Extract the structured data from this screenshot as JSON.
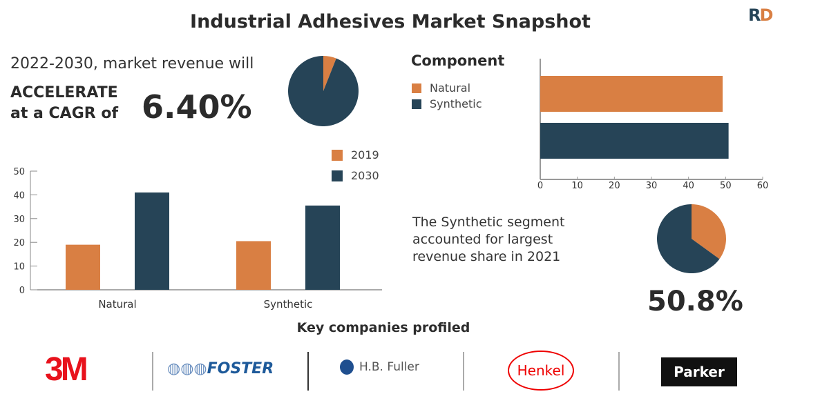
{
  "title": "Industrial Adhesives Market Snapshot",
  "brand_logo": "RD",
  "intro": "2022-2030, market revenue will",
  "accelerate": "ACCELERATE",
  "cagr_prefix": "at a CAGR of",
  "cagr_value": "6.40%",
  "segment_text": [
    "The Synthetic segment",
    "accounted for largest",
    "revenue share in 2021"
  ],
  "segment_share": "50.8%",
  "key_companies_label": "Key companies profiled",
  "companies": [
    "3M",
    "FOSTER",
    "H.B. Fuller",
    "Henkel",
    "Parker"
  ],
  "colors": {
    "orange": "#d97f43",
    "navy": "#264457"
  },
  "chart_data": [
    {
      "type": "pie",
      "values": [
        6,
        94
      ],
      "colors": [
        "#d97f43",
        "#264457"
      ]
    },
    {
      "type": "bar",
      "orientation": "horizontal",
      "title": "Component",
      "categories": [
        "Natural",
        "Synthetic"
      ],
      "values": [
        49.2,
        50.8
      ],
      "legend": [
        "Natural",
        "Synthetic"
      ],
      "legend_position": "top-left",
      "xlim": [
        0,
        60
      ],
      "xticks": [
        "0",
        "10",
        "20",
        "30",
        "40",
        "50",
        "60"
      ]
    },
    {
      "type": "bar",
      "categories": [
        "Natural",
        "Synthetic"
      ],
      "series": [
        {
          "name": "2019",
          "values": [
            19,
            20.5
          ]
        },
        {
          "name": "2030",
          "values": [
            41,
            35.5
          ]
        }
      ],
      "ylim": [
        0,
        50
      ],
      "yticks": [
        "0",
        "10",
        "20",
        "30",
        "40",
        "50"
      ],
      "legend_position": "top-right"
    },
    {
      "type": "pie",
      "values": [
        35,
        65
      ],
      "colors": [
        "#d97f43",
        "#264457"
      ]
    }
  ]
}
